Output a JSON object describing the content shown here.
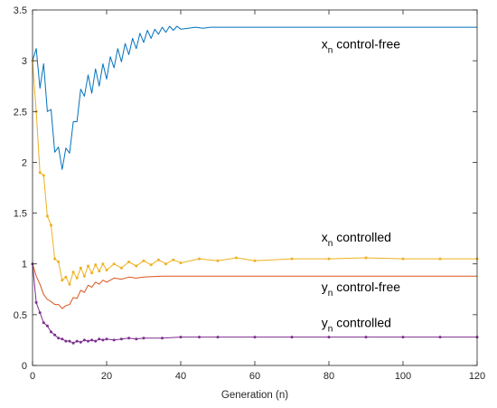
{
  "chart_data": {
    "type": "line",
    "title": "",
    "xlabel": "Generation (n)",
    "ylabel": "",
    "xlim": [
      0,
      120
    ],
    "ylim": [
      0,
      3.5
    ],
    "xticks": [
      0,
      20,
      40,
      60,
      80,
      100,
      120
    ],
    "yticks": [
      0,
      0.5,
      1,
      1.5,
      2,
      2.5,
      3,
      3.5
    ],
    "xtick_labels": [
      "0",
      "20",
      "40",
      "60",
      "80",
      "100",
      "120"
    ],
    "ytick_labels": [
      "0",
      "0.5",
      "1",
      "1.5",
      "2",
      "2.5",
      "3",
      "3.5"
    ],
    "grid": false,
    "legend": "none",
    "series": [
      {
        "id": "x-free",
        "color": "#0072BD",
        "markers": false,
        "x": [
          0,
          1,
          2,
          3,
          4,
          5,
          6,
          7,
          8,
          9,
          10,
          11,
          12,
          13,
          14,
          15,
          16,
          17,
          18,
          19,
          20,
          21,
          22,
          23,
          24,
          25,
          26,
          27,
          28,
          29,
          30,
          31,
          32,
          33,
          34,
          35,
          36,
          37,
          38,
          39,
          40,
          42,
          44,
          46,
          48,
          50,
          55,
          60,
          65,
          70,
          80,
          90,
          100,
          110,
          120
        ],
        "y": [
          3.0,
          3.12,
          2.73,
          2.97,
          2.5,
          2.52,
          2.1,
          2.15,
          1.93,
          2.14,
          2.09,
          2.4,
          2.4,
          2.72,
          2.65,
          2.86,
          2.68,
          2.92,
          2.75,
          2.97,
          2.82,
          3.04,
          2.93,
          3.12,
          2.99,
          3.17,
          3.06,
          3.22,
          3.12,
          3.27,
          3.18,
          3.3,
          3.22,
          3.31,
          3.26,
          3.33,
          3.28,
          3.34,
          3.3,
          3.34,
          3.31,
          3.32,
          3.33,
          3.32,
          3.33,
          3.33,
          3.33,
          3.33,
          3.33,
          3.33,
          3.33,
          3.33,
          3.33,
          3.33,
          3.33
        ]
      },
      {
        "id": "x-controlled",
        "color": "#EDB120",
        "markers": true,
        "x": [
          0,
          1,
          2,
          3,
          4,
          5,
          6,
          7,
          8,
          9,
          10,
          11,
          12,
          13,
          14,
          15,
          16,
          17,
          18,
          19,
          20,
          22,
          24,
          26,
          28,
          30,
          32,
          34,
          36,
          38,
          40,
          45,
          50,
          55,
          60,
          70,
          80,
          90,
          100,
          110,
          120
        ],
        "y": [
          3.0,
          2.5,
          1.9,
          1.87,
          1.47,
          1.38,
          1.05,
          1.02,
          0.84,
          0.87,
          0.8,
          0.92,
          0.86,
          0.96,
          0.88,
          0.98,
          0.91,
          0.99,
          0.93,
          1.0,
          0.94,
          1.0,
          0.96,
          1.02,
          0.98,
          1.03,
          0.99,
          1.04,
          1.0,
          1.04,
          1.01,
          1.05,
          1.03,
          1.06,
          1.03,
          1.05,
          1.05,
          1.06,
          1.05,
          1.05,
          1.05
        ]
      },
      {
        "id": "y-free",
        "color": "#D95319",
        "markers": false,
        "x": [
          0,
          1,
          2,
          3,
          4,
          5,
          6,
          7,
          8,
          9,
          10,
          11,
          12,
          13,
          14,
          15,
          16,
          17,
          18,
          19,
          20,
          22,
          24,
          26,
          28,
          30,
          35,
          40,
          45,
          50,
          60,
          70,
          80,
          90,
          100,
          110,
          120
        ],
        "y": [
          1.0,
          0.88,
          0.8,
          0.7,
          0.65,
          0.63,
          0.6,
          0.6,
          0.56,
          0.59,
          0.6,
          0.67,
          0.66,
          0.74,
          0.72,
          0.79,
          0.77,
          0.82,
          0.8,
          0.84,
          0.82,
          0.86,
          0.85,
          0.87,
          0.86,
          0.87,
          0.88,
          0.88,
          0.88,
          0.88,
          0.88,
          0.88,
          0.88,
          0.88,
          0.88,
          0.88,
          0.88
        ]
      },
      {
        "id": "y-controlled",
        "color": "#7E2F8E",
        "markers": true,
        "x": [
          0,
          1,
          2,
          3,
          4,
          5,
          6,
          7,
          8,
          9,
          10,
          11,
          12,
          13,
          14,
          15,
          16,
          17,
          18,
          19,
          20,
          22,
          24,
          26,
          28,
          30,
          35,
          40,
          45,
          50,
          60,
          70,
          80,
          90,
          100,
          110,
          120
        ],
        "y": [
          1.0,
          0.62,
          0.52,
          0.42,
          0.39,
          0.33,
          0.3,
          0.27,
          0.26,
          0.24,
          0.24,
          0.22,
          0.24,
          0.23,
          0.25,
          0.24,
          0.25,
          0.24,
          0.26,
          0.25,
          0.26,
          0.25,
          0.26,
          0.27,
          0.26,
          0.27,
          0.27,
          0.28,
          0.28,
          0.28,
          0.28,
          0.28,
          0.28,
          0.28,
          0.28,
          0.28,
          0.28
        ]
      }
    ],
    "annotations": [
      {
        "id": "x-free-label",
        "main": "x",
        "sub": "n",
        "rest": " control-free",
        "x": 78,
        "y": 3.12
      },
      {
        "id": "x-controlled-label",
        "main": "x",
        "sub": "n",
        "rest": " controlled",
        "x": 78,
        "y": 1.22
      },
      {
        "id": "y-free-label",
        "main": "y",
        "sub": "n",
        "rest": " control-free",
        "x": 78,
        "y": 0.73
      },
      {
        "id": "y-controlled-label",
        "main": "y",
        "sub": "n",
        "rest": " controlled",
        "x": 78,
        "y": 0.38
      }
    ]
  }
}
